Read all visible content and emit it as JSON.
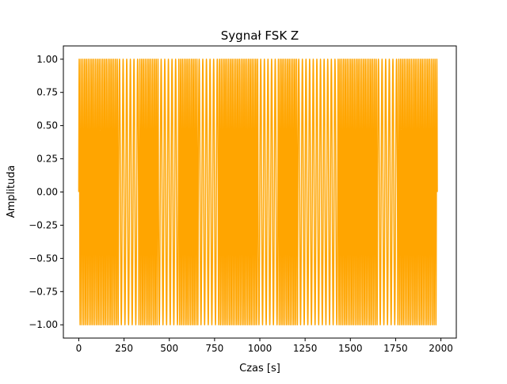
{
  "chart_data": {
    "type": "line",
    "title": "Sygnał FSK Z",
    "xlabel": "Czas [s]",
    "ylabel": "Amplituda",
    "xlim": [
      -85,
      2085
    ],
    "ylim": [
      -1.1,
      1.1
    ],
    "xticks": [
      0,
      250,
      500,
      750,
      1000,
      1250,
      1500,
      1750,
      2000
    ],
    "xtick_labels": [
      "0",
      "250",
      "500",
      "750",
      "1000",
      "1250",
      "1500",
      "1750",
      "2000"
    ],
    "yticks": [
      -1.0,
      -0.75,
      -0.5,
      -0.25,
      0.0,
      0.25,
      0.5,
      0.75,
      1.0
    ],
    "ytick_labels": [
      "−1.00",
      "−0.75",
      "−0.50",
      "−0.25",
      "0.00",
      "0.25",
      "0.50",
      "0.75",
      "1.00"
    ],
    "grid": false,
    "legend": "none",
    "series": [
      {
        "color": "#FFA500",
        "signal": "sin(2*pi*f*t), f = 1 cycle per 20 s for bit 0 and 1 cycle per 10 s for bit 1",
        "t_range": [
          0,
          1980
        ],
        "bit_duration": 110,
        "bits": [
          1,
          1,
          0,
          1,
          0,
          1,
          0,
          1,
          1,
          0,
          1,
          0,
          0,
          1,
          1,
          0,
          1,
          1
        ]
      }
    ]
  }
}
